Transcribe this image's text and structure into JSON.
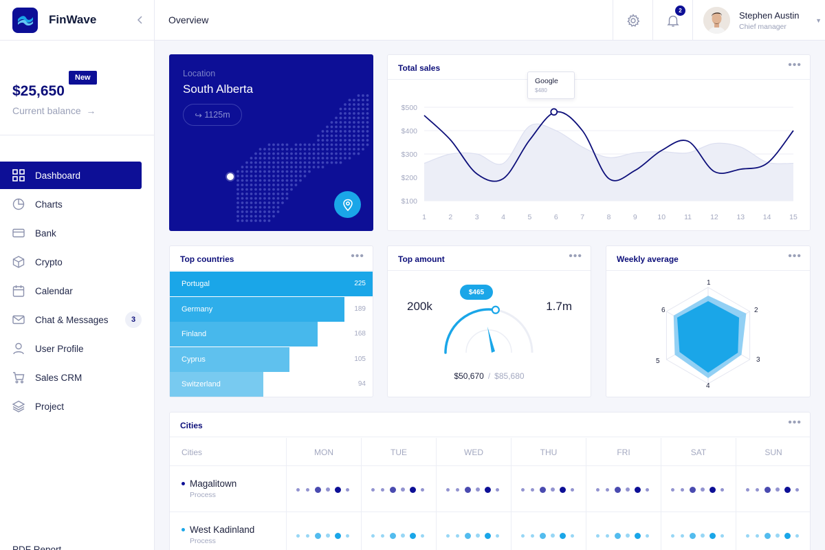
{
  "brand": {
    "name": "FinWave"
  },
  "balance": {
    "amount": "$25,650",
    "label": "Current balance",
    "badge": "New"
  },
  "nav": [
    {
      "label": "Dashboard",
      "icon": "grid-icon",
      "active": true
    },
    {
      "label": "Charts",
      "icon": "pie-chart-icon"
    },
    {
      "label": "Bank",
      "icon": "credit-card-icon"
    },
    {
      "label": "Crypto",
      "icon": "box-icon"
    },
    {
      "label": "Calendar",
      "icon": "calendar-icon"
    },
    {
      "label": "Chat & Messages",
      "icon": "mail-icon",
      "count": "3"
    },
    {
      "label": "User Profile",
      "icon": "user-icon"
    },
    {
      "label": "Sales CRM",
      "icon": "cart-icon"
    },
    {
      "label": "Project",
      "icon": "layers-icon"
    }
  ],
  "nav_footer": "PDF Report",
  "header": {
    "title": "Overview",
    "notifications": "2",
    "user": {
      "name": "Stephen Austin",
      "role": "Chief manager"
    }
  },
  "location": {
    "label": "Location",
    "name": "South Alberta",
    "distance": "1125m"
  },
  "total_sales": {
    "title": "Total sales",
    "tooltip": {
      "name": "Google",
      "value": "$480"
    }
  },
  "top_countries": {
    "title": "Top countries",
    "rows": [
      {
        "name": "Portugal",
        "value": "225",
        "fraction": 1.0,
        "color": "#1aa6e8"
      },
      {
        "name": "Germany",
        "value": "189",
        "fraction": 0.86,
        "color": "#2eaeea"
      },
      {
        "name": "Finland",
        "value": "168",
        "fraction": 0.73,
        "color": "#47b8ec"
      },
      {
        "name": "Cyprus",
        "value": "105",
        "fraction": 0.59,
        "color": "#5fc1ee"
      },
      {
        "name": "Switzerland",
        "value": "94",
        "fraction": 0.46,
        "color": "#78caf0"
      }
    ]
  },
  "top_amount": {
    "title": "Top amount",
    "left": "200k",
    "right": "1.7m",
    "bubble": "$465",
    "current": "$50,670",
    "max": "$85,680",
    "fraction": 0.55
  },
  "weekly_average": {
    "title": "Weekly average",
    "axes": [
      "1",
      "2",
      "3",
      "4",
      "5",
      "6"
    ]
  },
  "cities": {
    "title": "Cities",
    "col_label": "Cities",
    "days": [
      "MON",
      "TUE",
      "WED",
      "THU",
      "FRI",
      "SAT",
      "SUN"
    ],
    "rows": [
      {
        "name": "Magalitown",
        "sub": "Process",
        "color": "#0d0f96"
      },
      {
        "name": "West Kadinland",
        "sub": "Process",
        "color": "#1aa6e8"
      }
    ]
  },
  "colors": {
    "primary": "#0d0f96",
    "accent": "#1aa6e8",
    "background": "#f5f6fb"
  },
  "chart_data": [
    {
      "type": "line",
      "title": "Total sales",
      "x": [
        1,
        2,
        3,
        4,
        5,
        6,
        7,
        8,
        9,
        10,
        11,
        12,
        13,
        14,
        15
      ],
      "ytick_labels": [
        "$500",
        "$400",
        "$300",
        "$200",
        "$100"
      ],
      "ylim": [
        100,
        500
      ],
      "series": [
        {
          "values": [
            465,
            360,
            215,
            195,
            360,
            480,
            400,
            195,
            230,
            315,
            355,
            225,
            235,
            260,
            400
          ]
        },
        {
          "values": [
            260,
            300,
            300,
            260,
            420,
            400,
            330,
            285,
            305,
            310,
            305,
            345,
            330,
            265,
            260
          ]
        }
      ]
    },
    {
      "type": "bar",
      "title": "Top countries",
      "categories": [
        "Portugal",
        "Germany",
        "Finland",
        "Cyprus",
        "Switzerland"
      ],
      "values": [
        225,
        189,
        168,
        105,
        94
      ]
    }
  ]
}
